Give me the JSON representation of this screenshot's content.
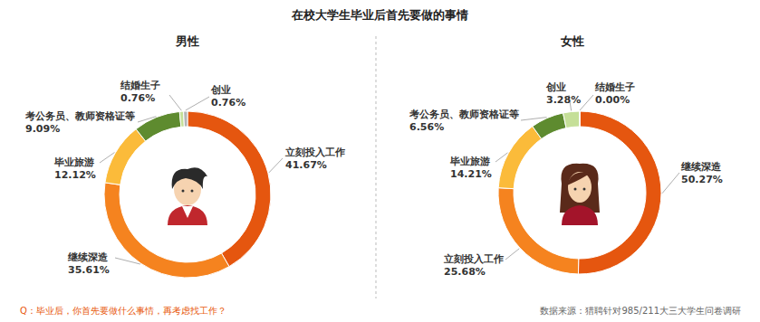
{
  "title": "在校大学生毕业后首先要做的事情",
  "note": "Q：毕业后，你首先要做什么事情，再考虑找工作？",
  "source": "数据来源：猎聘针对985/211大三大学生问卷调研",
  "chart_data": [
    {
      "type": "pie",
      "title": "男性",
      "categories": [
        "立刻投入工作",
        "继续深造",
        "毕业旅游",
        "考公务员、教师资格证等",
        "结婚生子",
        "创业"
      ],
      "values": [
        41.67,
        35.61,
        12.12,
        9.09,
        0.76,
        0.76
      ],
      "value_labels": [
        "41.67%",
        "35.61%",
        "12.12%",
        "9.09%",
        "0.76%",
        "0.76%"
      ],
      "colors": [
        "#e5560f",
        "#f5831f",
        "#fbbb3a",
        "#5e8b2f",
        "#c5df98",
        "#b5b5b5"
      ],
      "data_labels": true
    },
    {
      "type": "pie",
      "title": "女性",
      "categories": [
        "继续深造",
        "立刻投入工作",
        "毕业旅游",
        "考公务员、教师资格证等",
        "创业",
        "结婚生子"
      ],
      "values": [
        50.27,
        25.68,
        14.21,
        6.56,
        3.28,
        0.0
      ],
      "value_labels": [
        "50.27%",
        "25.68%",
        "14.21%",
        "6.56%",
        "3.28%",
        "0.00%"
      ],
      "colors": [
        "#e5560f",
        "#f5831f",
        "#fbbb3a",
        "#5e8b2f",
        "#c5df98",
        "#b5b5b5"
      ],
      "data_labels": true
    }
  ]
}
